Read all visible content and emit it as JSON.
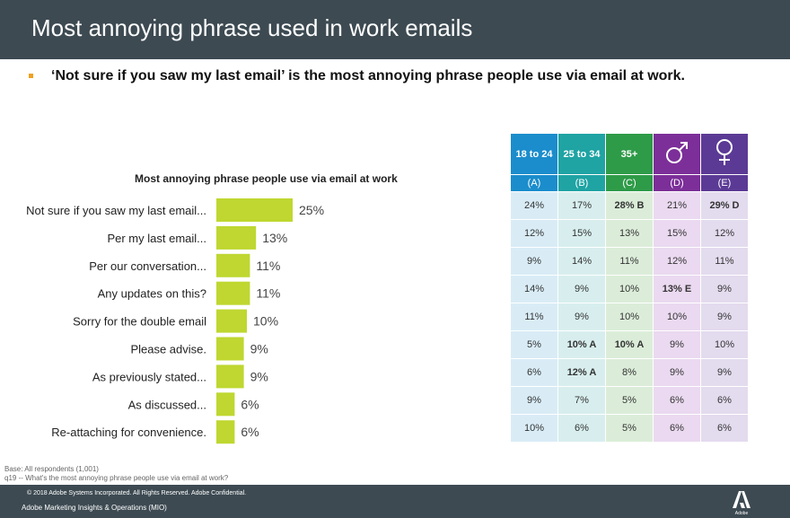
{
  "header": {
    "title": "Most annoying phrase used in work emails"
  },
  "headline": "‘Not sure if you saw my last email’ is the most annoying phrase people use via email at work.",
  "chart_data": {
    "type": "bar",
    "orientation": "horizontal",
    "title": "Most annoying phrase people use via email at work",
    "categories": [
      "Not sure if you saw my last email...",
      "Per my last email...",
      "Per our conversation...",
      "Any updates on this?",
      "Sorry for the double email",
      "Please advise.",
      "As previously stated...",
      "As discussed...",
      "Re-attaching for convenience."
    ],
    "values": [
      25,
      13,
      11,
      11,
      10,
      9,
      9,
      6,
      6
    ],
    "value_labels": [
      "25%",
      "13%",
      "11%",
      "11%",
      "10%",
      "9%",
      "9%",
      "6%",
      "6%"
    ],
    "bar_color": "#bfd730"
  },
  "table": {
    "headers": [
      "18 to 24",
      "25 to 34",
      "35+",
      "male-symbol",
      "female-symbol"
    ],
    "subheaders": [
      "(A)",
      "(B)",
      "(C)",
      "(D)",
      "(E)"
    ],
    "header_colors": [
      "#1b8dcc",
      "#1fa3a3",
      "#2e9b48",
      "#7c2f99",
      "#5b3a95"
    ],
    "rows": [
      [
        "24%",
        "17%",
        "28% B",
        "21%",
        "29% D"
      ],
      [
        "12%",
        "15%",
        "13%",
        "15%",
        "12%"
      ],
      [
        "9%",
        "14%",
        "11%",
        "12%",
        "11%"
      ],
      [
        "14%",
        "9%",
        "10%",
        "13% E",
        "9%"
      ],
      [
        "11%",
        "9%",
        "10%",
        "10%",
        "9%"
      ],
      [
        "5%",
        "10% A",
        "10% A",
        "9%",
        "10%"
      ],
      [
        "6%",
        "12% A",
        "8%",
        "9%",
        "9%"
      ],
      [
        "9%",
        "7%",
        "5%",
        "6%",
        "6%"
      ],
      [
        "10%",
        "6%",
        "5%",
        "6%",
        "6%"
      ]
    ]
  },
  "base_note": {
    "line1": "Base: All respondents (1,001)",
    "line2": "q19 -- What's the most annoying phrase people use via email at work?"
  },
  "footer": {
    "copyright": "© 2018 Adobe Systems Incorporated.  All Rights Reserved.  Adobe Confidential.",
    "org": "Adobe Marketing Insights & Operations (MIO)",
    "logo_text": "Adobe"
  }
}
